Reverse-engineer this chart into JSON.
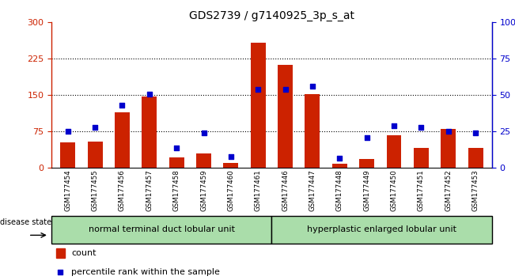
{
  "title": "GDS2739 / g7140925_3p_s_at",
  "samples": [
    "GSM177454",
    "GSM177455",
    "GSM177456",
    "GSM177457",
    "GSM177458",
    "GSM177459",
    "GSM177460",
    "GSM177461",
    "GSM177446",
    "GSM177447",
    "GSM177448",
    "GSM177449",
    "GSM177450",
    "GSM177451",
    "GSM177452",
    "GSM177453"
  ],
  "counts": [
    52,
    55,
    115,
    148,
    22,
    30,
    10,
    258,
    213,
    152,
    8,
    18,
    67,
    42,
    80,
    42
  ],
  "percentiles": [
    25,
    28,
    43,
    51,
    14,
    24,
    8,
    54,
    54,
    56,
    7,
    21,
    29,
    28,
    25,
    24
  ],
  "group1_label": "normal terminal duct lobular unit",
  "group2_label": "hyperplastic enlarged lobular unit",
  "group1_count": 8,
  "group2_count": 8,
  "disease_state_label": "disease state",
  "bar_color": "#cc2200",
  "dot_color": "#0000cc",
  "group_bg_color": "#aaddaa",
  "left_yticks": [
    0,
    75,
    150,
    225,
    300
  ],
  "right_ytick_vals": [
    0,
    25,
    50,
    75,
    100
  ],
  "right_ytick_labels": [
    "0",
    "25",
    "50",
    "75",
    "100%"
  ],
  "ylim_left": [
    0,
    300
  ],
  "ylim_right": [
    0,
    100
  ],
  "grid_lines": [
    75,
    150,
    225
  ],
  "tick_area_color": "#cccccc",
  "background_color": "#ffffff"
}
